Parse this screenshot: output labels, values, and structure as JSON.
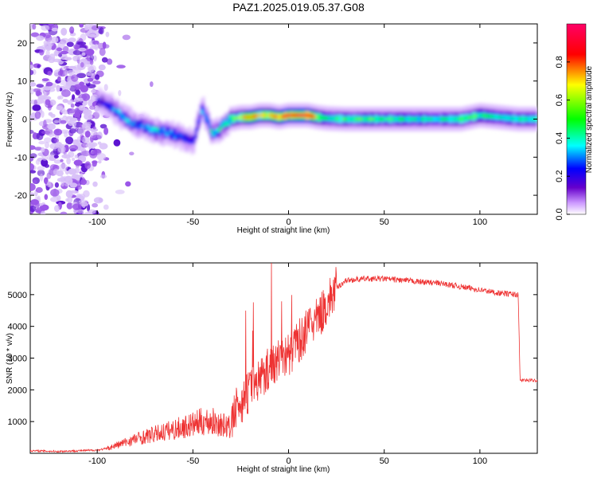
{
  "figure": {
    "title": "PAZ1.2025.019.05.37.G08"
  },
  "chart_data": [
    {
      "type": "heatmap",
      "xlabel": "Height of straight line (km)",
      "ylabel": "Frequency (Hz)",
      "xlim": [
        -135,
        130
      ],
      "ylim": [
        -25,
        25
      ],
      "xticks": [
        -100,
        -50,
        0,
        50,
        100
      ],
      "yticks": [
        -20,
        -10,
        0,
        10,
        20
      ],
      "colorbar": {
        "label": "Normalized spectral amplitude",
        "ticks": [
          0.0,
          0.2,
          0.4,
          0.6,
          0.8
        ],
        "colors": [
          "#ffffff",
          "#cc99ff",
          "#6600cc",
          "#0000ff",
          "#00ffff",
          "#00ff00",
          "#ffff00",
          "#ff0000",
          "#ff0066"
        ]
      },
      "track": {
        "x": [
          -100,
          -95,
          -90,
          -85,
          -80,
          -75,
          -70,
          -65,
          -60,
          -55,
          -50,
          -45,
          -40,
          -35,
          -30,
          -25,
          -20,
          -15,
          -10,
          -5,
          0,
          5,
          10,
          15,
          20,
          30,
          40,
          50,
          60,
          70,
          80,
          90,
          100,
          110,
          120,
          130
        ],
        "frequency": [
          5,
          4,
          2,
          0,
          -1.5,
          -2,
          -3,
          -3.5,
          -4,
          -5,
          -6,
          3,
          -4,
          -2,
          0,
          0.5,
          0.5,
          1,
          1,
          0.5,
          1,
          1,
          1,
          0.5,
          0.2,
          0,
          0,
          0,
          0,
          0,
          0,
          0,
          1,
          0.5,
          0,
          0
        ],
        "amplitude": [
          0.3,
          0.35,
          0.45,
          0.5,
          0.4,
          0.45,
          0.5,
          0.45,
          0.45,
          0.4,
          0.35,
          0.45,
          0.5,
          0.55,
          0.6,
          0.7,
          0.85,
          0.75,
          0.8,
          0.85,
          0.9,
          0.9,
          0.95,
          0.7,
          0.55,
          0.6,
          0.6,
          0.6,
          0.55,
          0.55,
          0.55,
          0.6,
          0.6,
          0.55,
          0.55,
          0.55
        ]
      },
      "noise_region": {
        "x": [
          -135,
          -95
        ],
        "amplitude": 0.2
      }
    },
    {
      "type": "line",
      "xlabel": "Height of straight line (km)",
      "ylabel": "SNR (10 * v/v)",
      "xlim": [
        -135,
        130
      ],
      "ylim": [
        0,
        6000
      ],
      "xticks": [
        -100,
        -50,
        0,
        50,
        100
      ],
      "yticks": [
        1000,
        2000,
        3000,
        4000,
        5000
      ],
      "color": "#ee3333",
      "series": [
        {
          "x": [
            -135,
            -120,
            -100,
            -95,
            -90,
            -80,
            -70,
            -60,
            -50,
            -45,
            -40,
            -35,
            -30,
            -28,
            -25,
            -20,
            -15,
            -10,
            -5,
            0,
            5,
            10,
            15,
            20,
            25,
            30,
            40,
            50,
            60,
            70,
            80,
            90,
            100,
            110,
            120,
            121,
            125,
            130
          ],
          "y": [
            80,
            60,
            100,
            150,
            250,
            450,
            600,
            750,
            900,
            1000,
            1000,
            900,
            800,
            1300,
            1600,
            2000,
            2400,
            2700,
            3000,
            3100,
            3500,
            3900,
            4200,
            4700,
            5200,
            5450,
            5500,
            5500,
            5450,
            5400,
            5350,
            5250,
            5150,
            5050,
            5000,
            2300,
            2300,
            2300
          ]
        }
      ]
    }
  ]
}
